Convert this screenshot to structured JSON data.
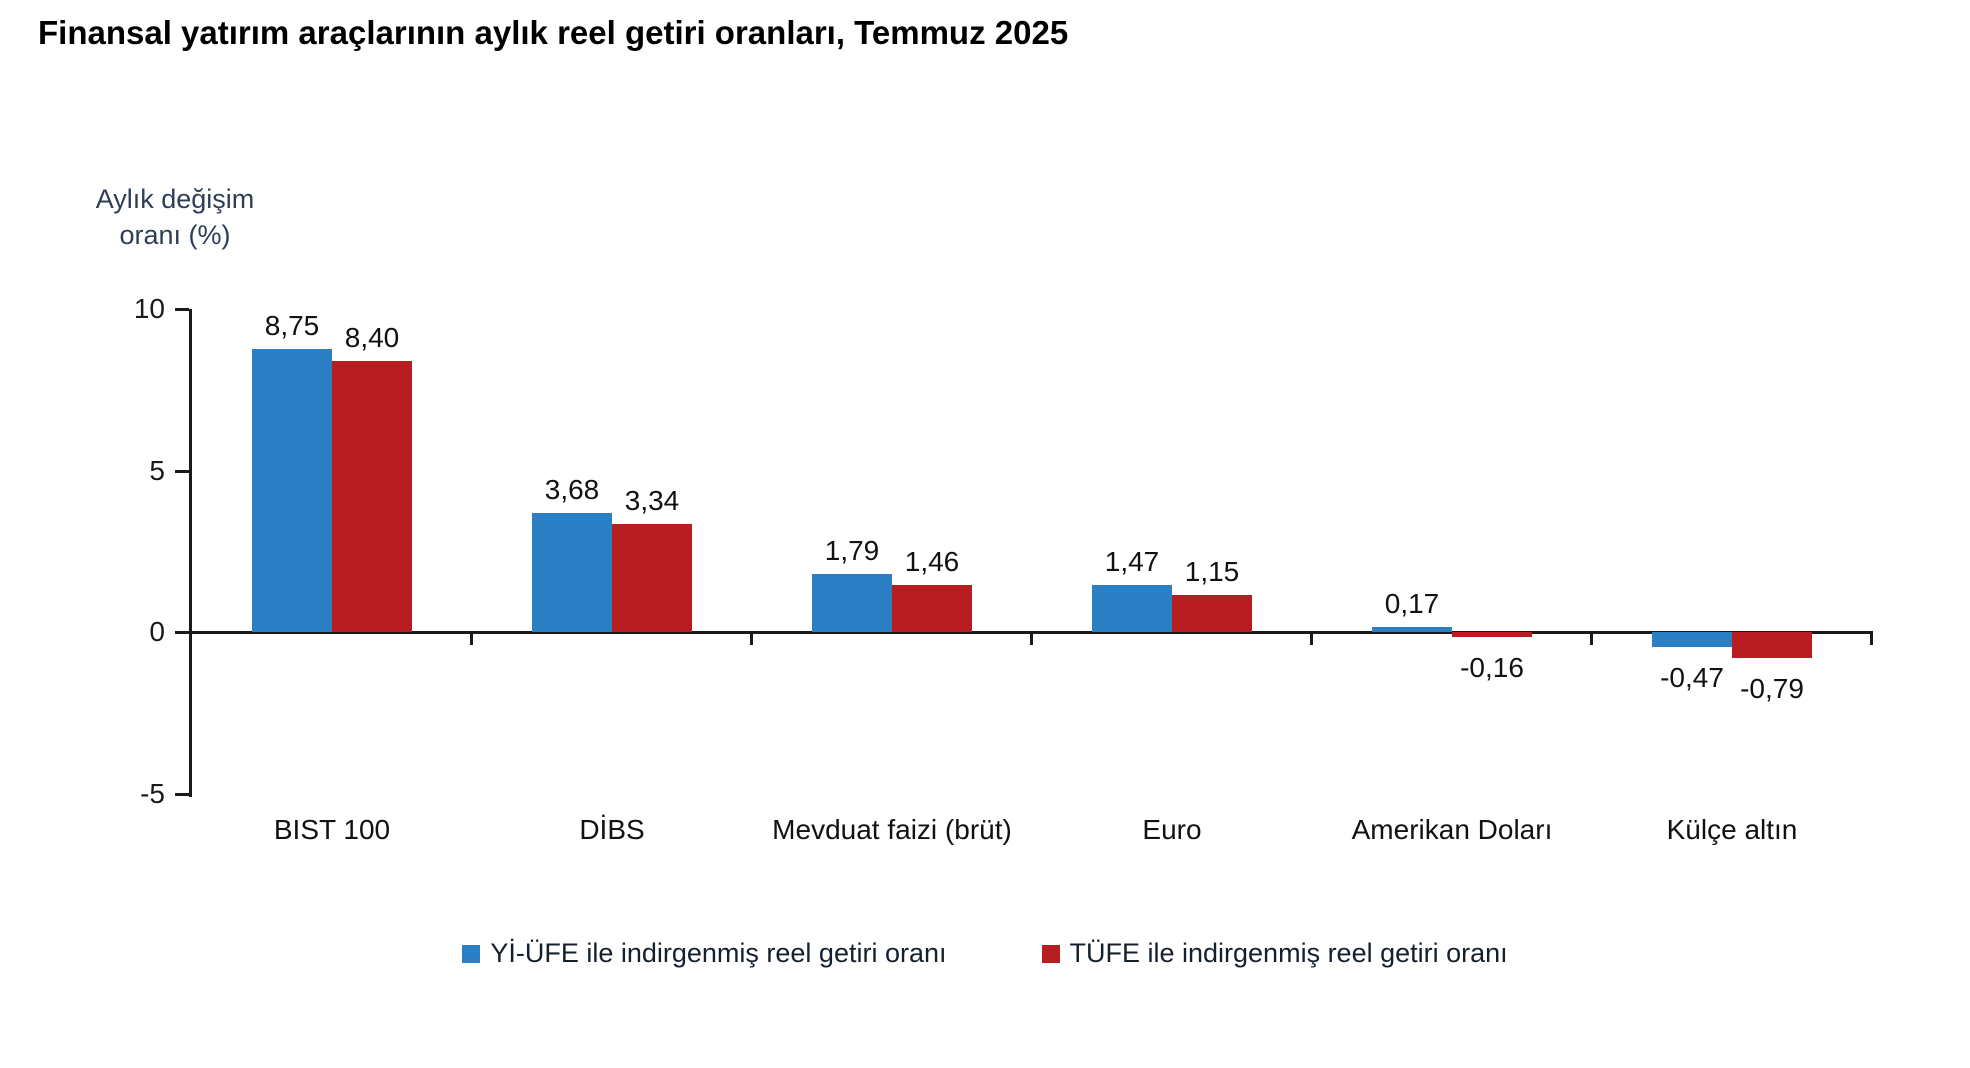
{
  "title": "Finansal yatırım araçlarının aylık reel getiri oranları, Temmuz 2025",
  "colors": {
    "series_blue": "#2C7FC4",
    "series_red": "#B71D21",
    "axis": "#1a1a1a",
    "y_axis_title_text": "#2f3e56"
  },
  "chart_data": {
    "type": "bar",
    "title": "Finansal yatırım araçlarının aylık reel getiri oranları, Temmuz 2025",
    "ylabel": "Aylık değişim\noranı (%)",
    "xlabel": "",
    "categories": [
      "BIST 100",
      "DİBS",
      "Mevduat faizi (brüt)",
      "Euro",
      "Amerikan Doları",
      "Külçe altın"
    ],
    "series": [
      {
        "name": "Yİ-ÜFE ile indirgenmiş reel getiri oranı",
        "color": "#2C7FC4",
        "values": [
          8.75,
          3.68,
          1.79,
          1.47,
          0.17,
          -0.47
        ],
        "labels": [
          "8,75",
          "3,68",
          "1,79",
          "1,47",
          "0,17",
          "-0,47"
        ]
      },
      {
        "name": "TÜFE ile indirgenmiş reel getiri oranı",
        "color": "#B71D21",
        "values": [
          8.4,
          3.34,
          1.46,
          1.15,
          -0.16,
          -0.79
        ],
        "labels": [
          "8,40",
          "3,34",
          "1,46",
          "1,15",
          "-0,16",
          "-0,79"
        ]
      }
    ],
    "y_ticks": [
      10,
      5,
      0,
      -5
    ],
    "y_tick_labels": [
      "10",
      "5",
      "0",
      "-5"
    ],
    "ylim": [
      -5,
      10
    ],
    "grid": false,
    "legend_position": "bottom"
  }
}
